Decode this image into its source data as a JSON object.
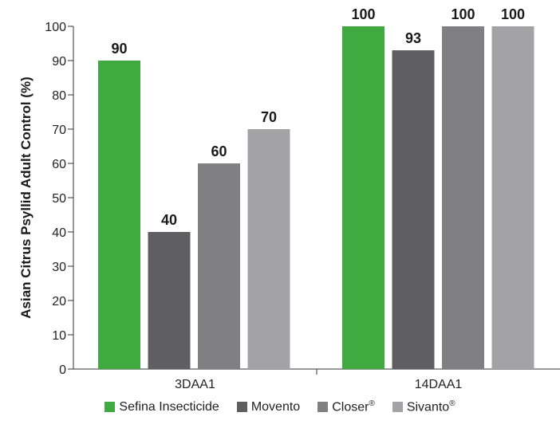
{
  "chart_data": {
    "type": "bar",
    "title": "",
    "xlabel": "",
    "ylabel": "Asian Citrus Psyllid Adult Control (%)",
    "ylim": [
      0,
      100
    ],
    "yticks": [
      "0",
      "10",
      "20",
      "30",
      "40",
      "50",
      "60",
      "70",
      "80",
      "90",
      "100"
    ],
    "categories": [
      "3DAA1",
      "14DAA1"
    ],
    "series": [
      {
        "name": "Sefina Insecticide",
        "registered": "",
        "color": "#3faa3f",
        "values": [
          90,
          100
        ]
      },
      {
        "name": "Movento",
        "registered": "",
        "color": "#5f5f61",
        "values": [
          40,
          93
        ]
      },
      {
        "name": "Closer",
        "registered": "®",
        "color": "#808083",
        "values": [
          60,
          100
        ]
      },
      {
        "name": "Sivanto",
        "registered": "®",
        "color": "#a3a3a6",
        "values": [
          70,
          100
        ]
      }
    ],
    "grid": false,
    "legend_position": "bottom"
  }
}
